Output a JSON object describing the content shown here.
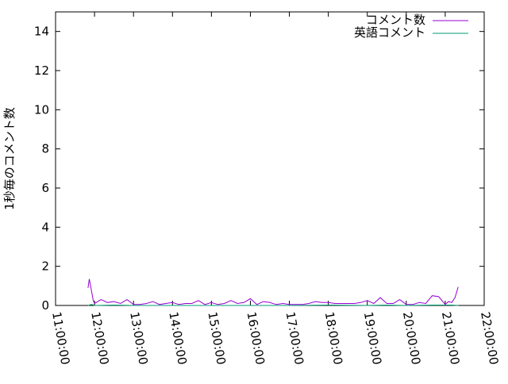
{
  "chart_data": {
    "type": "line",
    "title": "",
    "xlabel": "",
    "ylabel": "1秒毎のコメント数",
    "xlim": [
      "11:00:00",
      "22:00:00"
    ],
    "ylim": [
      0,
      15
    ],
    "x_ticks": [
      "11:00:00",
      "12:00:00",
      "13:00:00",
      "14:00:00",
      "15:00:00",
      "16:00:00",
      "17:00:00",
      "18:00:00",
      "19:00:00",
      "20:00:00",
      "21:00:00",
      "22:00:00"
    ],
    "y_ticks": [
      "0",
      "2",
      "4",
      "6",
      "8",
      "10",
      "12",
      "14"
    ],
    "grid": false,
    "legend": "top-right",
    "series": [
      {
        "name": "コメント数",
        "color": "#9400d3",
        "x": [
          "11:50",
          "11:52",
          "11:58",
          "12:00",
          "12:10",
          "12:20",
          "12:30",
          "12:40",
          "12:50",
          "13:00",
          "13:10",
          "13:20",
          "13:30",
          "13:40",
          "13:50",
          "14:00",
          "14:10",
          "14:20",
          "14:30",
          "14:40",
          "14:50",
          "15:00",
          "15:10",
          "15:20",
          "15:30",
          "15:40",
          "15:50",
          "16:00",
          "16:10",
          "16:20",
          "16:30",
          "16:40",
          "16:50",
          "17:00",
          "17:10",
          "17:20",
          "17:30",
          "17:40",
          "17:50",
          "18:00",
          "18:10",
          "18:20",
          "18:30",
          "18:40",
          "18:50",
          "19:00",
          "19:10",
          "19:20",
          "19:30",
          "19:40",
          "19:50",
          "20:00",
          "20:10",
          "20:20",
          "20:30",
          "20:40",
          "20:50",
          "21:00",
          "21:05",
          "21:10",
          "21:15",
          "21:20"
        ],
        "values": [
          0.9,
          1.35,
          0.25,
          0.1,
          0.3,
          0.15,
          0.2,
          0.1,
          0.3,
          0.05,
          0.05,
          0.1,
          0.2,
          0.05,
          0.1,
          0.15,
          0.05,
          0.1,
          0.1,
          0.25,
          0.05,
          0.15,
          0.05,
          0.1,
          0.25,
          0.1,
          0.15,
          0.35,
          0.05,
          0.2,
          0.15,
          0.05,
          0.1,
          0.05,
          0.05,
          0.05,
          0.1,
          0.2,
          0.15,
          0.15,
          0.1,
          0.1,
          0.1,
          0.1,
          0.15,
          0.25,
          0.1,
          0.4,
          0.1,
          0.1,
          0.3,
          0.05,
          0.05,
          0.15,
          0.1,
          0.5,
          0.45,
          0.05,
          0.2,
          0.15,
          0.4,
          0.95
        ]
      },
      {
        "name": "英語コメント",
        "color": "#009e73",
        "x": [
          "11:50",
          "11:55",
          "11:58",
          "12:00",
          "12:30",
          "13:00",
          "14:00",
          "15:00",
          "16:00",
          "17:00",
          "18:00",
          "19:00",
          "19:30",
          "20:00",
          "20:40",
          "21:00",
          "21:10",
          "21:20"
        ],
        "values": [
          0,
          0.05,
          0.03,
          0,
          0.02,
          0,
          0,
          0,
          0,
          0,
          0.02,
          0,
          0.02,
          0,
          0.02,
          0.02,
          0.02,
          0
        ]
      }
    ]
  }
}
